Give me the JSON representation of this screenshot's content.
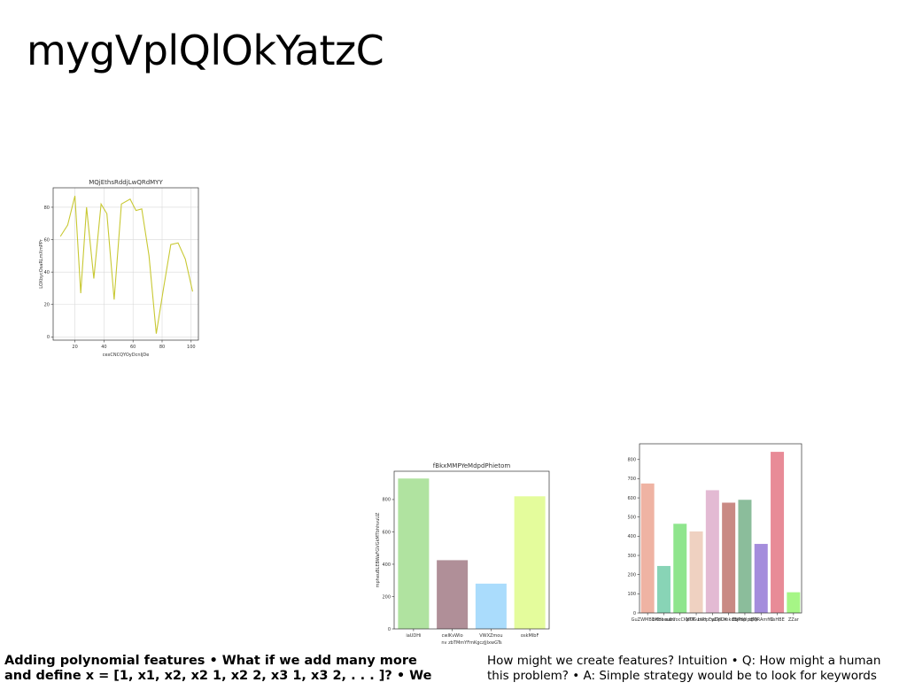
{
  "slide": {
    "title": "mygVplQlOkYatzC",
    "caption_left": [
      "Adding polynomial features • What if we add many more",
      "and define x = [1, x1, x2, x2 1, x2 2, x3 1, x3 2, . . . ]? • We"
    ],
    "caption_right": [
      "How might we create features? Intuition • Q: How might a human",
      "this problem? • A: Simple strategy would be to look for keywords"
    ]
  },
  "chart_data": [
    {
      "type": "line",
      "title": "MQjEthsRddjLwQRdMYY",
      "xlabel": "cexCNCQYOyDcnIjDe",
      "ylabel": "LOXbycOsaRLmXmPPr",
      "x": [
        10,
        15,
        20,
        24,
        28,
        33,
        38,
        42,
        47,
        52,
        58,
        62,
        66,
        71,
        76,
        81,
        86,
        91,
        96,
        101
      ],
      "series": [
        {
          "values": [
            62,
            69,
            87,
            27,
            80,
            36,
            82,
            76,
            23,
            82,
            85,
            78,
            79,
            50,
            2,
            30,
            57,
            58,
            48,
            28
          ],
          "color": "#c8c832"
        }
      ],
      "xlim": [
        5,
        105
      ],
      "ylim": [
        -2,
        92
      ],
      "xticks": [
        20,
        40,
        60,
        80,
        100
      ],
      "yticks": [
        0,
        20,
        40,
        60,
        80
      ],
      "grid": true
    },
    {
      "type": "bar",
      "title": "fBkxMMPYeMdpdPhietom",
      "xlabel": "nv zbTMmYFmKgczJjlxwGTs",
      "ylabel": "mpheuBLEBWaFGVGkMTbhhvuUZ",
      "categories": [
        "iaUDHi",
        "cwIKvWIo",
        "VWXZmou",
        "oskMIbF"
      ],
      "values": [
        930,
        425,
        280,
        820
      ],
      "colors": [
        "#b0e3a0",
        "#b08f98",
        "#aadcfc",
        "#e4fc9c"
      ],
      "ylim": [
        0,
        975
      ],
      "yticks": [
        0,
        200,
        400,
        600,
        800
      ],
      "grid": false
    },
    {
      "type": "bar",
      "title": "",
      "xlabel": "",
      "ylabel": "",
      "categories": [
        "GuZWMBDHbe",
        "bKHboubu",
        "eaHfocCKpTP",
        "MUGunPr",
        "bkdpEyZMDK",
        "wGpUmkdBjPap",
        "EbfHWpqMi",
        "tBQRAmfiN",
        "CsHBE",
        "ZZar"
      ],
      "values": [
        675,
        245,
        465,
        425,
        640,
        575,
        590,
        360,
        840,
        108
      ],
      "colors": [
        "#efb3a3",
        "#88d4b6",
        "#8fe58d",
        "#efd1c1",
        "#e3bad3",
        "#c98a84",
        "#8bbd9b",
        "#a48ddc",
        "#e88b97",
        "#a6f686"
      ],
      "ylim": [
        0,
        882
      ],
      "yticks": [
        0,
        100,
        200,
        300,
        400,
        500,
        600,
        700,
        800
      ],
      "grid": false
    }
  ]
}
